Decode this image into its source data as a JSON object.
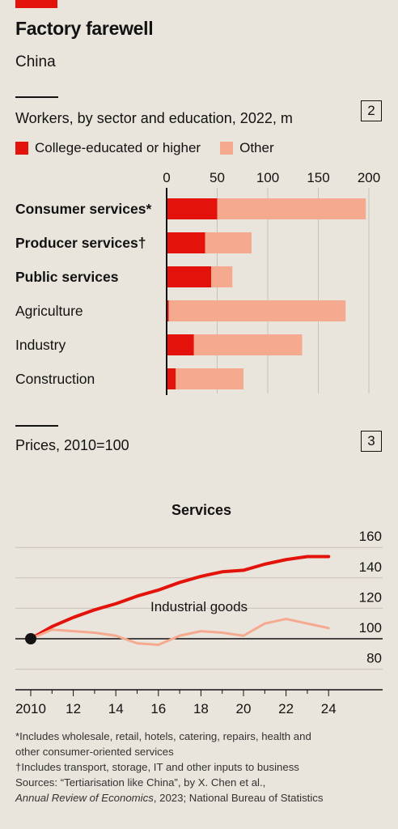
{
  "header": {
    "title": "Factory farewell",
    "subtitle": "China"
  },
  "colors": {
    "college": "#e3120b",
    "other": "#f5a98f",
    "services_line": "#e3120b",
    "industrial_line": "#f5a98f",
    "background": "#e9e5dc"
  },
  "chart_data": [
    {
      "type": "bar",
      "stacked": true,
      "orientation": "horizontal",
      "panel_number": "2",
      "title": "Workers, by sector and education, 2022, m",
      "categories": [
        "Consumer services*",
        "Producer services†",
        "Public services",
        "Agriculture",
        "Industry",
        "Construction"
      ],
      "bold_categories": [
        true,
        true,
        true,
        false,
        false,
        false
      ],
      "series": [
        {
          "name": "College-educated or higher",
          "values": [
            50,
            38,
            44,
            2,
            27,
            9
          ]
        },
        {
          "name": "Other",
          "values": [
            147,
            46,
            21,
            175,
            107,
            67
          ]
        }
      ],
      "xlim": [
        0,
        200
      ],
      "xticks": [
        "0",
        "50",
        "100",
        "150",
        "200"
      ],
      "grid": true,
      "legend_position": "top-left"
    },
    {
      "type": "line",
      "panel_number": "3",
      "title": "Prices, 2010=100",
      "x": [
        2010,
        2011,
        2012,
        2013,
        2014,
        2015,
        2016,
        2017,
        2018,
        2019,
        2020,
        2021,
        2022,
        2023,
        2024
      ],
      "series": [
        {
          "name": "Services",
          "values": [
            100,
            108,
            114,
            119,
            123,
            128,
            132,
            137,
            141,
            144,
            145,
            149,
            152,
            154,
            154
          ]
        },
        {
          "name": "Industrial goods",
          "values": [
            100,
            106,
            105,
            104,
            102,
            97,
            96,
            102,
            105,
            104,
            102,
            110,
            113,
            110,
            107
          ]
        }
      ],
      "ylim": [
        80,
        160
      ],
      "yticks": [
        "80",
        "100",
        "120",
        "140",
        "160"
      ],
      "xticks": [
        "2010",
        "12",
        "14",
        "16",
        "18",
        "20",
        "22",
        "24"
      ],
      "baseline": 100,
      "grid": true
    }
  ],
  "footnotes": {
    "note1": "*Includes wholesale, retail, hotels, catering, repairs, health and",
    "note1b": "other consumer-oriented services",
    "note2": "†Includes transport, storage, IT and other inputs to business",
    "sources": "Sources: “Tertiarisation like China”, by X. Chen et al.,",
    "journal": "Annual Review of Economics",
    "sources_end": ", 2023; National Bureau of Statistics"
  }
}
